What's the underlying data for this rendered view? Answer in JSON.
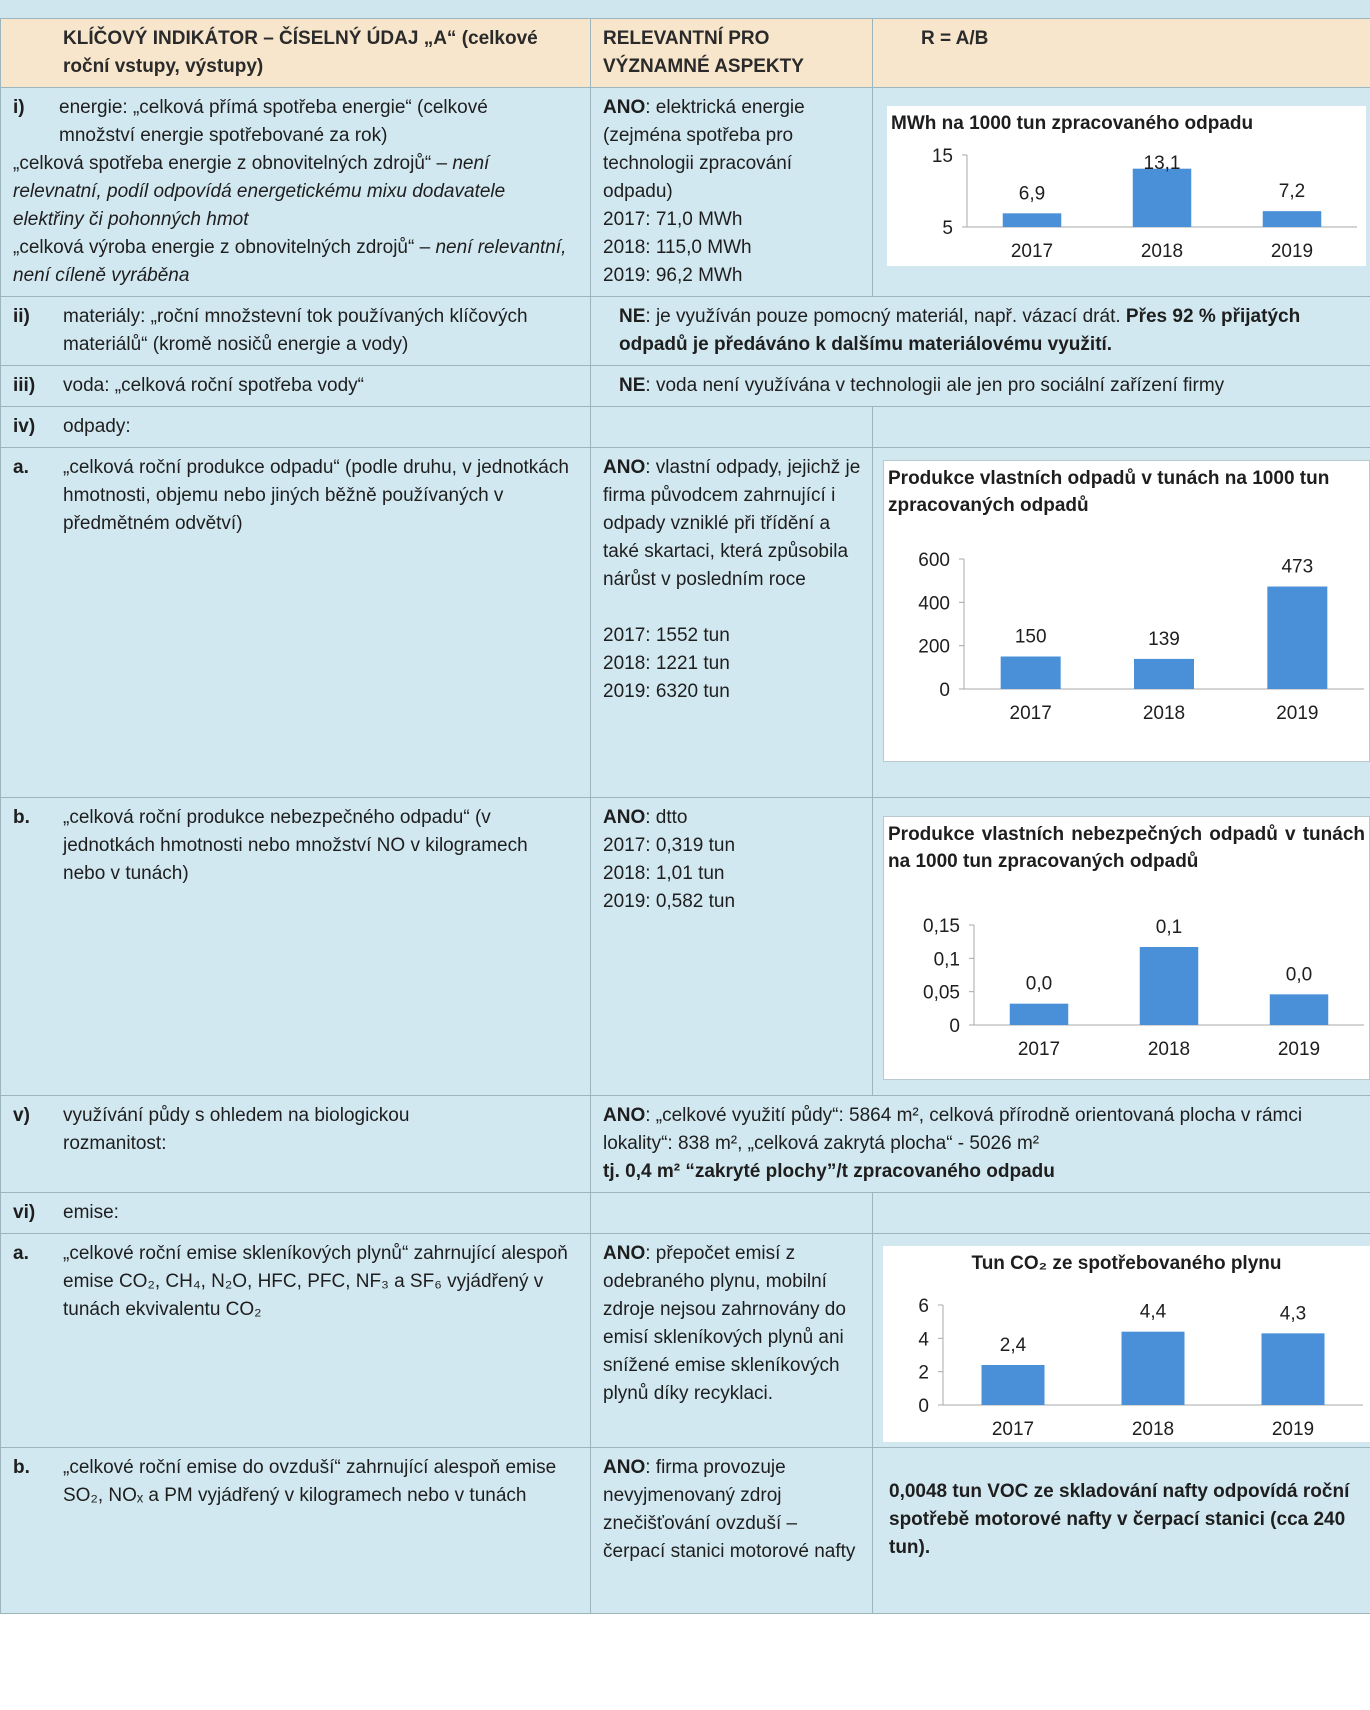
{
  "header": {
    "col1": "KLÍČOVÝ INDIKÁTOR – ČÍSELNÝ ÚDAJ „A“ (celkové roční vstupy, výstupy)",
    "col2": "RELEVANTNÍ PRO VÝZNAMNÉ ASPEKTY",
    "col3": "R = A/B"
  },
  "rows": {
    "energy": {
      "num": "i)",
      "text1": "energie: „celková přímá spotřeba energie“ (celkové množství energie spotřebované za rok)",
      "text2a": "„celková spotřeba energie z obnovitelných zdrojů“ – ",
      "text2b": "není relevnatní, podíl odpovídá energetickému mixu dodavatele elektřiny či pohonných hmot",
      "text3a": "„celková výroba energie z obnovitelných zdrojů“ – ",
      "text3b": "není relevantní, není cíleně vyráběna",
      "aspect_bold": "ANO",
      "aspect": ": elektrická energie (zejména spotřeba pro technologii zpracování odpadu)",
      "y2017": "2017:  71,0 MWh",
      "y2018": "2018: 115,0 MWh",
      "y2019": "2019:  96,2 MWh"
    },
    "materials": {
      "num": "ii)",
      "text": "materiály: „roční množstevní tok používaných klíčových materiálů“ (kromě nosičů energie a vody)",
      "ne": "NE",
      "desc": ": je využíván pouze pomocný materiál, např. vázací drát. ",
      "desc_bold": "Přes 92 % přijatých odpadů je předáváno k dalšímu materiálovému využití."
    },
    "water": {
      "num": "iii)",
      "text": "voda: „celková roční spotřeba vody“",
      "ne": "NE",
      "desc": ": voda není využívána v technologii ale jen pro sociální zařízení firmy"
    },
    "waste": {
      "num": "iv)",
      "text": "odpady:"
    },
    "waste_a": {
      "num": "a.",
      "text": "„celková roční produkce odpadu“ (podle druhu, v jednotkách hmotnosti, objemu nebo jiných běžně používaných v předmětném odvětví)",
      "aspect_bold": "ANO",
      "aspect": ": vlastní odpady, jejichž je firma původcem zahrnující i odpady vzniklé při třídění a také skartaci, která způsobila nárůst v posledním roce",
      "y2017": "2017: 1552 tun",
      "y2018": "2018: 1221 tun",
      "y2019": "2019: 6320 tun"
    },
    "waste_b": {
      "num": "b.",
      "text": "„celková roční produkce nebezpečného odpadu“ (v jednotkách hmotnosti nebo množství NO v kilogramech nebo v tunách)",
      "aspect_bold": "ANO",
      "aspect": ": dtto",
      "y2017": "2017: 0,319 tun",
      "y2018": "2018: 1,01 tun",
      "y2019": "2019: 0,582 tun"
    },
    "land": {
      "num": "v)",
      "text": "využívání půdy s ohledem na biologickou rozmanitost:",
      "ano": "ANO",
      "desc": ": „celkové využití půdy“: 5864 m², celková přírodně orientovaná plocha v rámci lokality“: 838 m², „celková zakrytá plocha“ - 5026 m²",
      "desc_bold": "tj. 0,4 m² “zakryté plochy”/t zpracovaného odpadu"
    },
    "emissions": {
      "num": "vi)",
      "text": "emise:"
    },
    "em_a": {
      "num": "a.",
      "text": "„celkové roční emise skleníkových plynů“ zahrnující alespoň emise CO₂, CH₄, N₂O, HFC, PFC, NF₃ a SF₆ vyjádřený v tunách ekvivalentu CO₂",
      "aspect_bold": "ANO",
      "aspect": ": přepočet emisí z odebraného plynu, mobilní zdroje nejsou zahrnovány do emisí skleníkových plynů ani snížené emise skleníkových plynů díky recyklaci."
    },
    "em_b": {
      "num": "b.",
      "text": "„celkové roční emise do ovzduší“ zahrnující alespoň emise SO₂, NOₓ a PM vyjádřený v kilogramech nebo v tunách",
      "aspect_bold": "ANO",
      "aspect": ": firma provozuje nevyjmenovaný zdroj znečišťování ovzduší – čerpací stanici motorové nafty",
      "result": "0,0048 tun VOC ze skladování nafty odpovídá roční spotřebě motorové nafty v čerpací stanici (cca 240 tun)."
    }
  },
  "colors": {
    "bar": "#4a90d9",
    "header_bg": "#f7e6cc",
    "cell_bg": "#d2e8f0"
  },
  "chart_data": [
    {
      "type": "bar",
      "title": "MWh na 1000 tun zpracovaného odpadu",
      "categories": [
        "2017",
        "2018",
        "2019"
      ],
      "values": [
        6.9,
        13.1,
        7.2
      ],
      "labels": [
        "6,9",
        "13,1",
        "7,2"
      ],
      "yticks": [
        "5",
        "15"
      ],
      "ylim": [
        5,
        15
      ]
    },
    {
      "type": "bar",
      "title": "Produkce vlastních odpadů v tunách na 1000 tun zpracovaných odpadů",
      "categories": [
        "2017",
        "2018",
        "2019"
      ],
      "values": [
        150,
        139,
        473
      ],
      "labels": [
        "150",
        "139",
        "473"
      ],
      "yticks": [
        "0",
        "200",
        "400",
        "600"
      ],
      "ylim": [
        0,
        600
      ]
    },
    {
      "type": "bar",
      "title": "Produkce vlastních nebezpečných odpadů v tunách na 1000 tun zpracovaných odpadů",
      "categories": [
        "2017",
        "2018",
        "2019"
      ],
      "values": [
        0.032,
        0.117,
        0.046
      ],
      "labels": [
        "0,0",
        "0,1",
        "0,0"
      ],
      "yticks": [
        "0",
        "0,05",
        "0,1",
        "0,15"
      ],
      "ylim": [
        0,
        0.15
      ]
    },
    {
      "type": "bar",
      "title": "Tun CO₂ ze spotřebovaného plynu",
      "categories": [
        "2017",
        "2018",
        "2019"
      ],
      "values": [
        2.4,
        4.4,
        4.3
      ],
      "labels": [
        "2,4",
        "4,4",
        "4,3"
      ],
      "yticks": [
        "0",
        "2",
        "4",
        "6"
      ],
      "ylim": [
        0,
        6
      ]
    }
  ]
}
